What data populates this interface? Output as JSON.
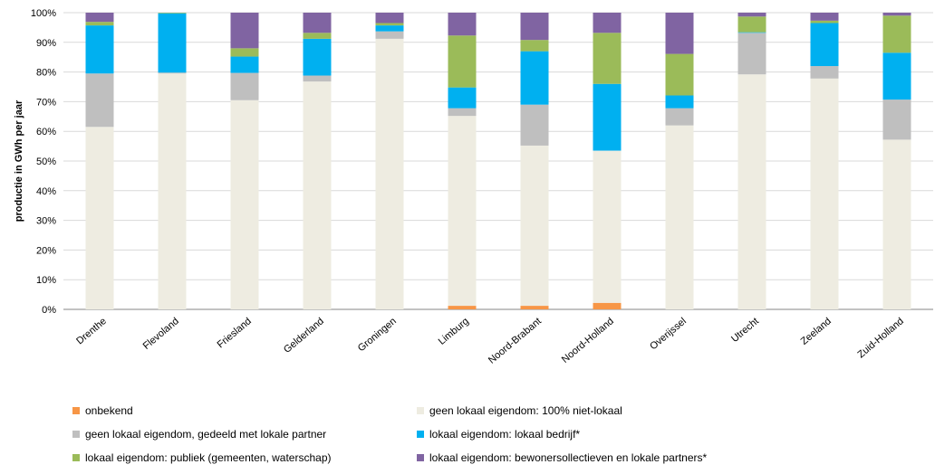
{
  "chart_data": {
    "type": "bar",
    "stacked": "percent",
    "ylabel": "productie in GWh per jaar",
    "y_ticks": [
      "0%",
      "10%",
      "20%",
      "30%",
      "40%",
      "50%",
      "60%",
      "70%",
      "80%",
      "90%",
      "100%"
    ],
    "ylim": [
      0,
      100
    ],
    "grid": true,
    "legend_position": "bottom",
    "categories": [
      "Drenthe",
      "Flevoland",
      "Friesland",
      "Gelderland",
      "Groningen",
      "Limburg",
      "Noord-Brabant",
      "Noord-Holland",
      "Overijssel",
      "Utrecht",
      "Zeeland",
      "Zuid-Holland"
    ],
    "series": [
      {
        "name": "onbekend",
        "color": "#F79646",
        "values": [
          0,
          0,
          0,
          0,
          0,
          1.2,
          1.2,
          2.2,
          0,
          0,
          0,
          0
        ]
      },
      {
        "name": "geen lokaal eigendom: 100% niet-lokaal",
        "color": "#EEECE1",
        "values": [
          61.5,
          79.5,
          70.5,
          76.8,
          91.2,
          64.0,
          54.0,
          51.3,
          62.0,
          79.2,
          77.8,
          57.2
        ]
      },
      {
        "name": "geen lokaal eigendom, gedeeld met lokale partner",
        "color": "#BFBFBF",
        "values": [
          18.0,
          0.3,
          9.2,
          2.0,
          2.5,
          2.6,
          13.8,
          0,
          5.8,
          14.0,
          4.2,
          13.5
        ]
      },
      {
        "name": "lokaal eigendom: lokaal bedrijf*",
        "color": "#00B0F0",
        "values": [
          16.2,
          20.0,
          5.5,
          12.4,
          2.0,
          7.0,
          18.0,
          22.5,
          4.3,
          0.2,
          14.5,
          15.8
        ]
      },
      {
        "name": "lokaal eigendom: publiek (gemeenten, waterschap)",
        "color": "#9BBB59",
        "values": [
          1.2,
          0.2,
          2.8,
          2.0,
          0.8,
          17.5,
          3.8,
          17.2,
          14.0,
          5.3,
          0.8,
          12.5
        ]
      },
      {
        "name": "lokaal eigendom: bewonersollectieven en lokale partners*",
        "color": "#8064A2",
        "values": [
          3.1,
          0,
          12.0,
          6.8,
          3.5,
          7.7,
          9.2,
          6.8,
          13.9,
          1.3,
          2.7,
          1.0
        ]
      }
    ]
  },
  "legend": {
    "items": [
      {
        "label": "onbekend",
        "color": "#F79646"
      },
      {
        "label": "geen lokaal eigendom: 100% niet-lokaal",
        "color": "#EEECE1"
      },
      {
        "label": "geen lokaal eigendom, gedeeld met lokale partner",
        "color": "#BFBFBF"
      },
      {
        "label": "lokaal eigendom: lokaal bedrijf*",
        "color": "#00B0F0"
      },
      {
        "label": "lokaal eigendom: publiek (gemeenten, waterschap)",
        "color": "#9BBB59"
      },
      {
        "label": "lokaal eigendom: bewonersollectieven en lokale partners*",
        "color": "#8064A2"
      }
    ]
  }
}
